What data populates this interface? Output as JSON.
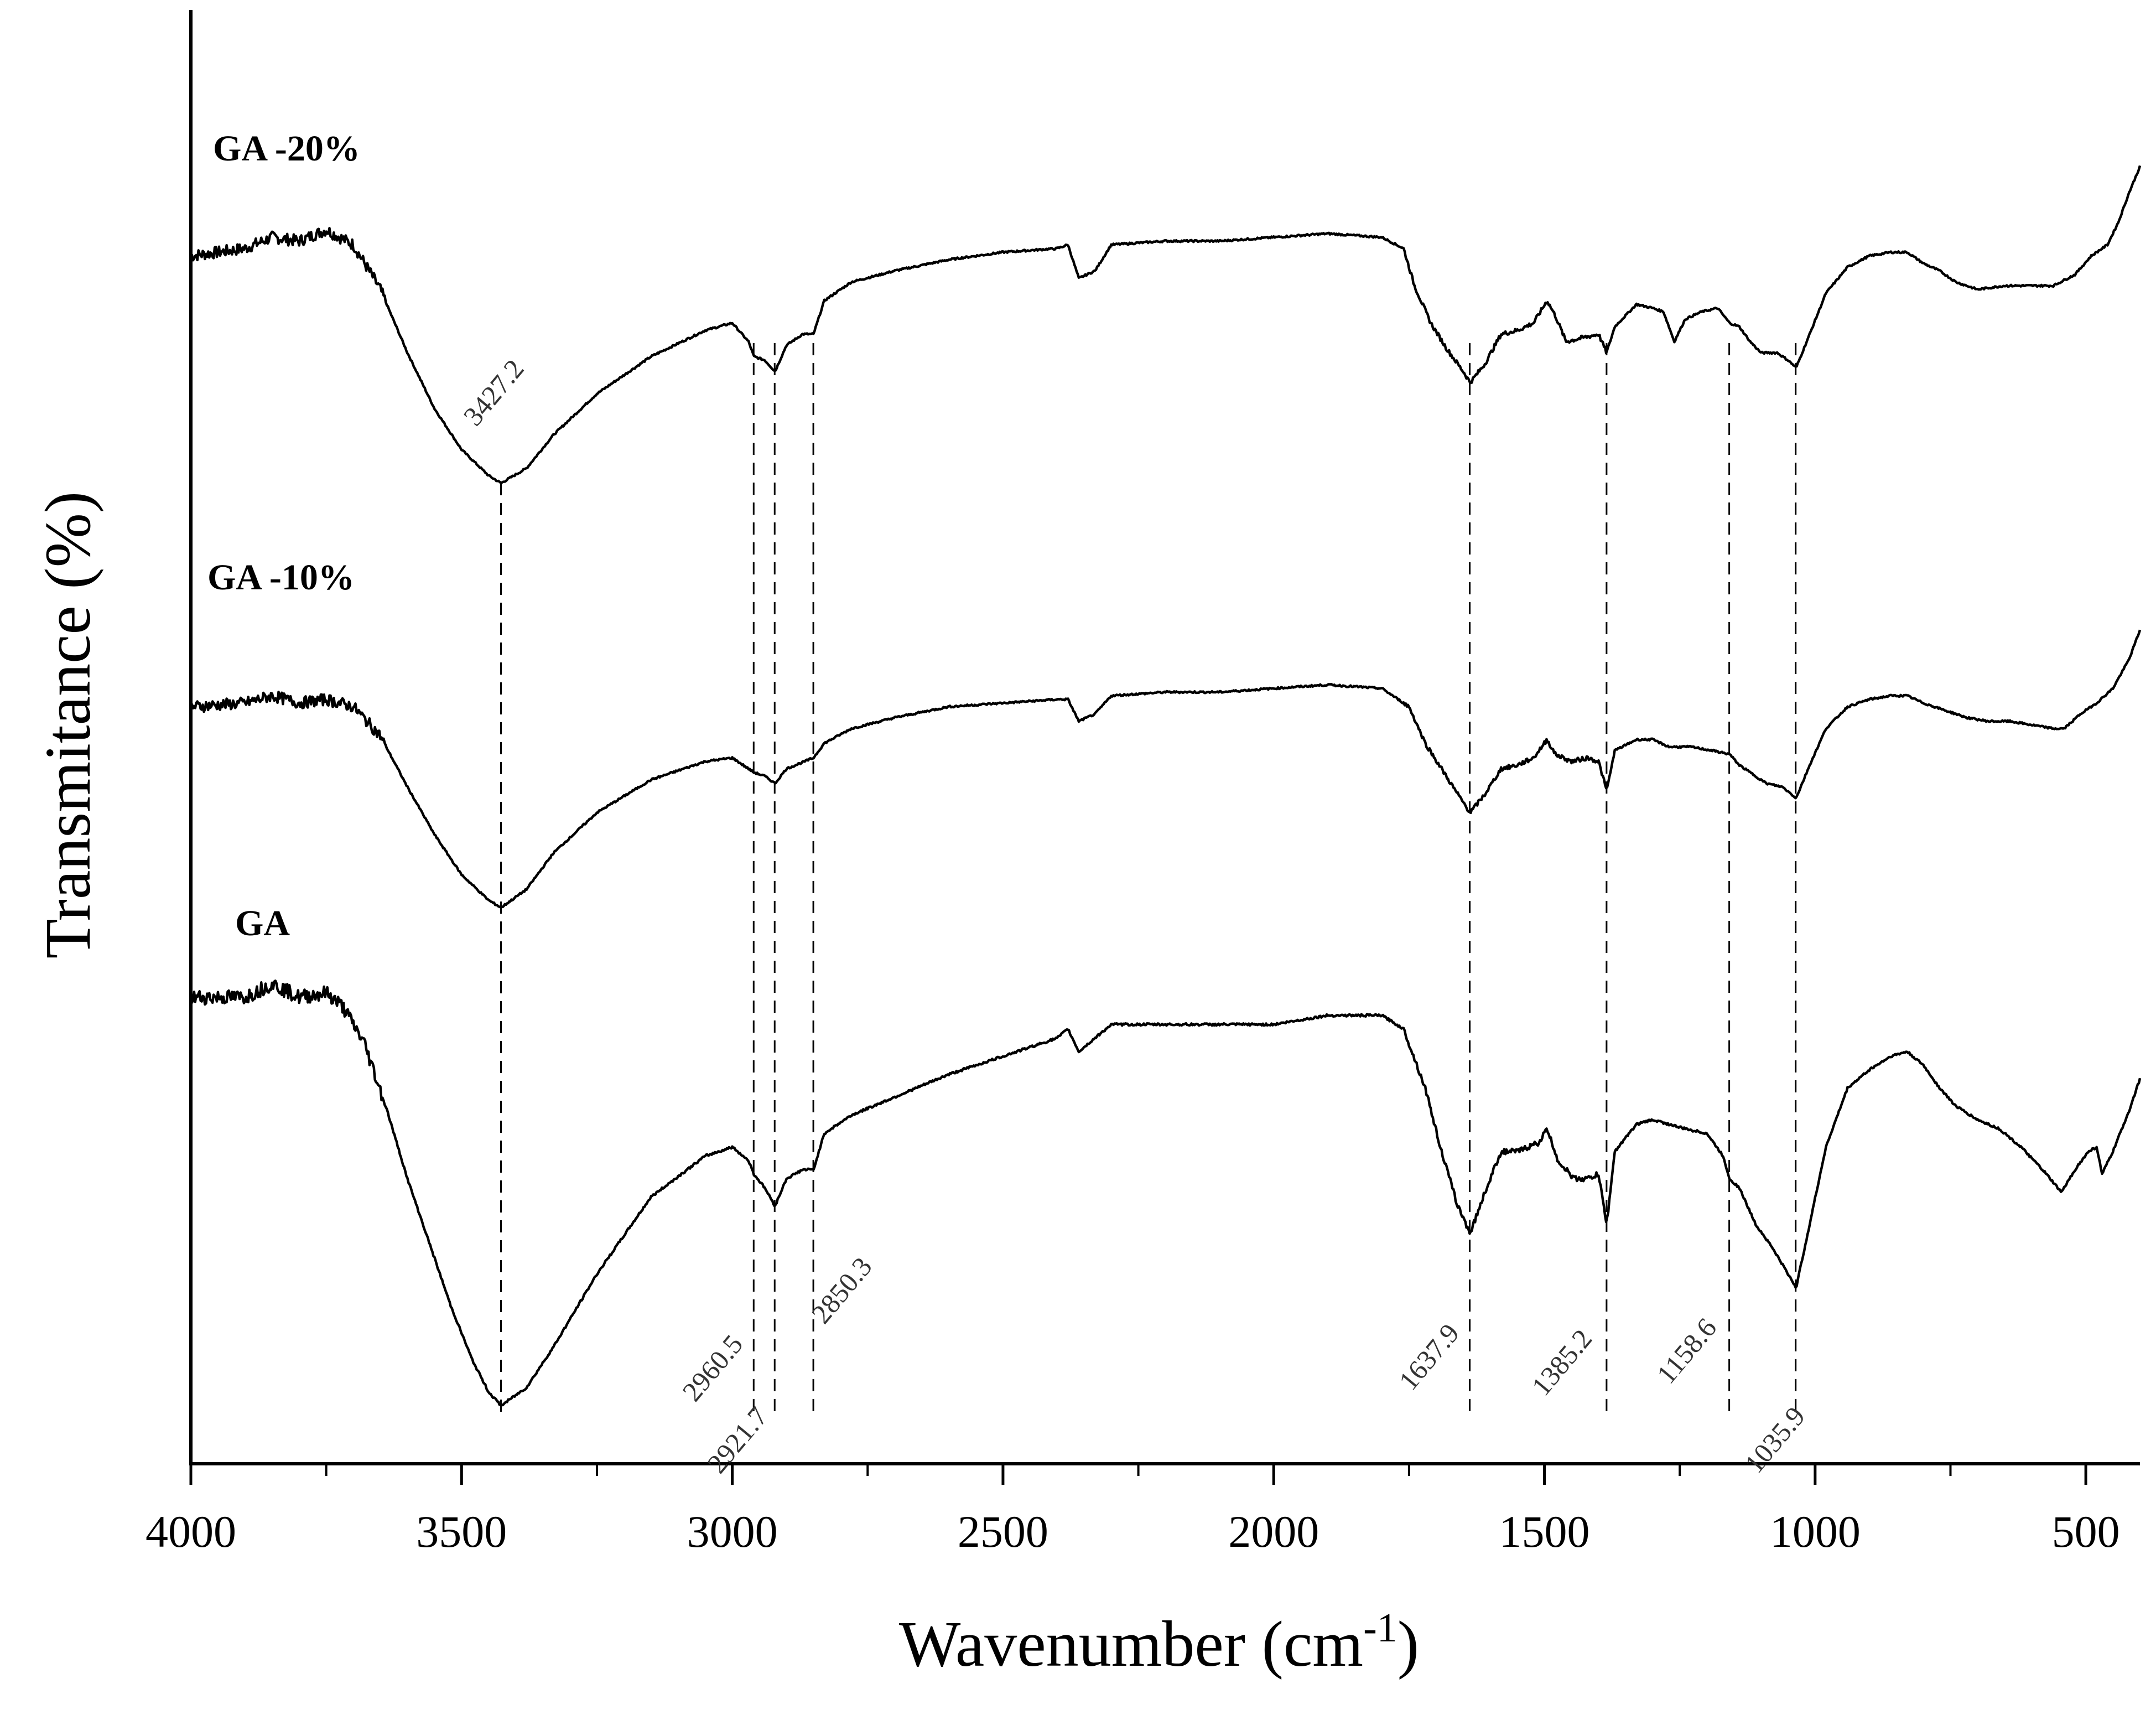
{
  "chart_data": {
    "type": "line",
    "title": "",
    "xlabel": "Wavenumber (cm",
    "xlabel_superscript": "-1",
    "xlabel_suffix": ")",
    "ylabel": "Transmitance (%)",
    "xlim": [
      4000,
      400
    ],
    "x_reversed": true,
    "y_ticks_shown": false,
    "x_ticks": [
      {
        "value": 4000,
        "label": "4000"
      },
      {
        "value": 3500,
        "label": "3500"
      },
      {
        "value": 3000,
        "label": "3000"
      },
      {
        "value": 2500,
        "label": "2500"
      },
      {
        "value": 2000,
        "label": "2000"
      },
      {
        "value": 1500,
        "label": "1500"
      },
      {
        "value": 1000,
        "label": "1000"
      },
      {
        "value": 500,
        "label": "500"
      }
    ],
    "series": [
      {
        "name": "GA -20%",
        "label": "GA -20%",
        "points": [
          [
            4000,
            61
          ],
          [
            3900,
            63
          ],
          [
            3850,
            66
          ],
          [
            3800,
            65
          ],
          [
            3750,
            68
          ],
          [
            3700,
            64
          ],
          [
            3650,
            52
          ],
          [
            3600,
            35
          ],
          [
            3550,
            20
          ],
          [
            3500,
            9
          ],
          [
            3450,
            2
          ],
          [
            3427,
            0
          ],
          [
            3380,
            4
          ],
          [
            3330,
            13
          ],
          [
            3250,
            24
          ],
          [
            3150,
            34
          ],
          [
            3050,
            41
          ],
          [
            3000,
            43
          ],
          [
            2970,
            38
          ],
          [
            2960,
            34
          ],
          [
            2940,
            33
          ],
          [
            2921,
            30
          ],
          [
            2900,
            37
          ],
          [
            2870,
            40
          ],
          [
            2850,
            40
          ],
          [
            2830,
            49
          ],
          [
            2780,
            54
          ],
          [
            2700,
            57
          ],
          [
            2600,
            60
          ],
          [
            2500,
            62
          ],
          [
            2400,
            63
          ],
          [
            2380,
            64
          ],
          [
            2360,
            55
          ],
          [
            2330,
            57
          ],
          [
            2300,
            64
          ],
          [
            2200,
            65
          ],
          [
            2100,
            65
          ],
          [
            2000,
            66
          ],
          [
            1900,
            67
          ],
          [
            1800,
            66
          ],
          [
            1760,
            63
          ],
          [
            1740,
            53
          ],
          [
            1710,
            43
          ],
          [
            1680,
            36
          ],
          [
            1650,
            30
          ],
          [
            1637,
            27
          ],
          [
            1610,
            32
          ],
          [
            1580,
            40
          ],
          [
            1550,
            41
          ],
          [
            1520,
            43
          ],
          [
            1495,
            49
          ],
          [
            1480,
            45
          ],
          [
            1460,
            38
          ],
          [
            1430,
            39
          ],
          [
            1400,
            40
          ],
          [
            1385,
            35
          ],
          [
            1370,
            42
          ],
          [
            1330,
            48
          ],
          [
            1300,
            47
          ],
          [
            1280,
            46
          ],
          [
            1260,
            38
          ],
          [
            1240,
            44
          ],
          [
            1210,
            46
          ],
          [
            1180,
            47
          ],
          [
            1158,
            43
          ],
          [
            1140,
            42
          ],
          [
            1120,
            38
          ],
          [
            1100,
            35
          ],
          [
            1070,
            35
          ],
          [
            1050,
            33
          ],
          [
            1035,
            31
          ],
          [
            1010,
            40
          ],
          [
            980,
            51
          ],
          [
            940,
            58
          ],
          [
            900,
            61
          ],
          [
            860,
            62
          ],
          [
            830,
            62
          ],
          [
            800,
            59
          ],
          [
            770,
            57
          ],
          [
            740,
            54
          ],
          [
            700,
            52
          ],
          [
            650,
            53
          ],
          [
            600,
            53
          ],
          [
            560,
            53
          ],
          [
            520,
            56
          ],
          [
            490,
            61
          ],
          [
            460,
            64
          ],
          [
            440,
            70
          ],
          [
            420,
            78
          ],
          [
            400,
            85
          ]
        ]
      },
      {
        "name": "GA -10%",
        "label": "GA -10%",
        "points": [
          [
            4000,
            55
          ],
          [
            3900,
            56
          ],
          [
            3850,
            58
          ],
          [
            3800,
            56
          ],
          [
            3750,
            57
          ],
          [
            3700,
            55
          ],
          [
            3650,
            47
          ],
          [
            3600,
            33
          ],
          [
            3550,
            20
          ],
          [
            3500,
            9
          ],
          [
            3450,
            2
          ],
          [
            3427,
            0
          ],
          [
            3380,
            5
          ],
          [
            3330,
            15
          ],
          [
            3250,
            26
          ],
          [
            3150,
            35
          ],
          [
            3050,
            40
          ],
          [
            3000,
            41
          ],
          [
            2960,
            37
          ],
          [
            2940,
            36
          ],
          [
            2921,
            34
          ],
          [
            2900,
            38
          ],
          [
            2850,
            41
          ],
          [
            2830,
            45
          ],
          [
            2780,
            49
          ],
          [
            2700,
            52
          ],
          [
            2600,
            55
          ],
          [
            2500,
            56
          ],
          [
            2400,
            57
          ],
          [
            2380,
            57
          ],
          [
            2360,
            51
          ],
          [
            2330,
            53
          ],
          [
            2300,
            58
          ],
          [
            2200,
            59
          ],
          [
            2100,
            59
          ],
          [
            2000,
            60
          ],
          [
            1900,
            61
          ],
          [
            1800,
            60
          ],
          [
            1750,
            55
          ],
          [
            1720,
            45
          ],
          [
            1690,
            38
          ],
          [
            1660,
            31
          ],
          [
            1637,
            26
          ],
          [
            1610,
            31
          ],
          [
            1580,
            38
          ],
          [
            1550,
            39
          ],
          [
            1520,
            41
          ],
          [
            1495,
            46
          ],
          [
            1480,
            42
          ],
          [
            1450,
            40
          ],
          [
            1420,
            41
          ],
          [
            1400,
            40
          ],
          [
            1385,
            32
          ],
          [
            1370,
            43
          ],
          [
            1330,
            46
          ],
          [
            1300,
            46
          ],
          [
            1270,
            44
          ],
          [
            1230,
            44
          ],
          [
            1190,
            43
          ],
          [
            1158,
            42
          ],
          [
            1140,
            39
          ],
          [
            1120,
            37
          ],
          [
            1090,
            34
          ],
          [
            1060,
            33
          ],
          [
            1035,
            30
          ],
          [
            1010,
            39
          ],
          [
            980,
            49
          ],
          [
            940,
            55
          ],
          [
            900,
            57
          ],
          [
            860,
            58
          ],
          [
            830,
            58
          ],
          [
            800,
            56
          ],
          [
            760,
            54
          ],
          [
            720,
            52
          ],
          [
            680,
            51
          ],
          [
            640,
            51
          ],
          [
            600,
            50
          ],
          [
            560,
            49
          ],
          [
            540,
            49
          ],
          [
            510,
            53
          ],
          [
            480,
            56
          ],
          [
            450,
            60
          ],
          [
            420,
            68
          ],
          [
            400,
            76
          ]
        ]
      },
      {
        "name": "GA",
        "label": "GA",
        "points": [
          [
            4000,
            90
          ],
          [
            3900,
            90
          ],
          [
            3850,
            93
          ],
          [
            3800,
            90
          ],
          [
            3750,
            91
          ],
          [
            3720,
            88
          ],
          [
            3680,
            80
          ],
          [
            3640,
            66
          ],
          [
            3600,
            50
          ],
          [
            3560,
            36
          ],
          [
            3520,
            22
          ],
          [
            3480,
            10
          ],
          [
            3450,
            3
          ],
          [
            3427,
            0
          ],
          [
            3380,
            4
          ],
          [
            3330,
            13
          ],
          [
            3250,
            29
          ],
          [
            3150,
            46
          ],
          [
            3050,
            55
          ],
          [
            3000,
            57
          ],
          [
            2970,
            54
          ],
          [
            2960,
            51
          ],
          [
            2940,
            48
          ],
          [
            2921,
            44
          ],
          [
            2900,
            50
          ],
          [
            2870,
            52
          ],
          [
            2850,
            52
          ],
          [
            2830,
            60
          ],
          [
            2780,
            64
          ],
          [
            2700,
            68
          ],
          [
            2600,
            73
          ],
          [
            2500,
            77
          ],
          [
            2400,
            81
          ],
          [
            2380,
            83
          ],
          [
            2360,
            78
          ],
          [
            2330,
            81
          ],
          [
            2300,
            84
          ],
          [
            2200,
            84
          ],
          [
            2100,
            84
          ],
          [
            2000,
            84
          ],
          [
            1900,
            86
          ],
          [
            1800,
            86
          ],
          [
            1760,
            83
          ],
          [
            1720,
            70
          ],
          [
            1690,
            56
          ],
          [
            1660,
            44
          ],
          [
            1637,
            38
          ],
          [
            1610,
            47
          ],
          [
            1580,
            56
          ],
          [
            1550,
            56
          ],
          [
            1510,
            58
          ],
          [
            1495,
            61
          ],
          [
            1475,
            54
          ],
          [
            1445,
            50
          ],
          [
            1420,
            50
          ],
          [
            1400,
            51
          ],
          [
            1385,
            40
          ],
          [
            1370,
            56
          ],
          [
            1330,
            62
          ],
          [
            1300,
            63
          ],
          [
            1270,
            62
          ],
          [
            1240,
            61
          ],
          [
            1200,
            60
          ],
          [
            1170,
            55
          ],
          [
            1158,
            50
          ],
          [
            1140,
            48
          ],
          [
            1110,
            40
          ],
          [
            1080,
            35
          ],
          [
            1060,
            31
          ],
          [
            1035,
            26
          ],
          [
            1010,
            40
          ],
          [
            980,
            57
          ],
          [
            940,
            70
          ],
          [
            900,
            74
          ],
          [
            860,
            77
          ],
          [
            830,
            78
          ],
          [
            800,
            75
          ],
          [
            770,
            70
          ],
          [
            740,
            66
          ],
          [
            700,
            63
          ],
          [
            660,
            61
          ],
          [
            620,
            57
          ],
          [
            580,
            52
          ],
          [
            545,
            47
          ],
          [
            520,
            52
          ],
          [
            495,
            56
          ],
          [
            480,
            57
          ],
          [
            470,
            51
          ],
          [
            450,
            56
          ],
          [
            420,
            65
          ],
          [
            400,
            72
          ]
        ]
      }
    ],
    "peak_markers": [
      {
        "value": 3427.2,
        "label": "3427.2"
      },
      {
        "value": 2960.5,
        "label": "2960.5"
      },
      {
        "value": 2921.7,
        "label": "2921.7"
      },
      {
        "value": 2850.3,
        "label": "2850.3"
      },
      {
        "value": 1637.9,
        "label": "1637.9"
      },
      {
        "value": 1385.2,
        "label": "1385.2"
      },
      {
        "value": 1158.6,
        "label": "1158.6"
      },
      {
        "value": 1035.9,
        "label": "1035.9"
      }
    ]
  }
}
